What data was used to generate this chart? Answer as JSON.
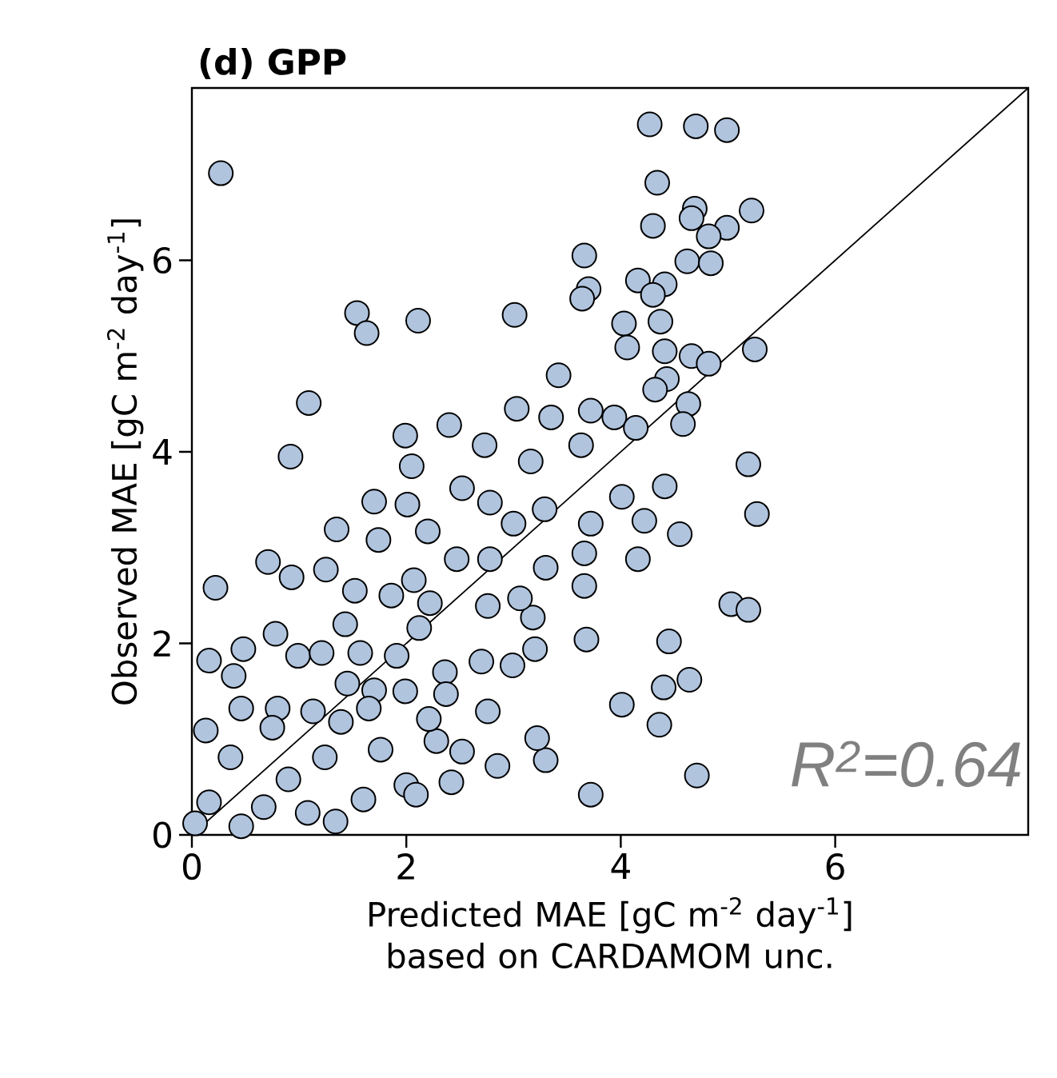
{
  "chart_data": {
    "type": "scatter",
    "title": "(d) GPP",
    "xlabel": "Predicted MAE [gC m$^{-2}$ day$^{-1}$] based on CARDAMOM unc.",
    "ylabel": "Observed MAE [gC m$^{-2}$ day$^{-1}$]",
    "annotations": [
      "*R$^{2}$=0.64*"
    ],
    "xlim": [
      0,
      7.8
    ],
    "ylim": [
      0,
      7.8
    ],
    "xticks": [
      0,
      2,
      4,
      6
    ],
    "yticks": [
      0,
      2,
      4,
      6
    ],
    "series": [
      {
        "marker": "circle",
        "color": "#b0c4de",
        "x": [
          4.27,
          4.7,
          4.99,
          0.27,
          4.34,
          4.69,
          4.66,
          5.22,
          4.3,
          4.99,
          4.82,
          3.66,
          3.7,
          3.64,
          4.62,
          4.84,
          4.16,
          4.41,
          4.3,
          1.54,
          1.63,
          2.11,
          3.01,
          4.03,
          4.06,
          4.37,
          4.41,
          4.66,
          4.82,
          5.25,
          3.42,
          4.43,
          4.32,
          4.63,
          4.58,
          1.09,
          0.92,
          1.99,
          2.05,
          2.4,
          2.73,
          3.03,
          3.35,
          3.16,
          3.72,
          3.94,
          4.14,
          3.63,
          5.19,
          5.27,
          4.41,
          4.01,
          4.22,
          4.55,
          3.72,
          3.66,
          4.16,
          3.66,
          5.03,
          5.19,
          3.68,
          4.45,
          4.64,
          4.4,
          4.01,
          4.36,
          4.71,
          3.72,
          3.3,
          3.22,
          2.85,
          2.76,
          2.42,
          2.52,
          2.28,
          3.2,
          2.99,
          2.7,
          3.18,
          3.3,
          2.76,
          3.06,
          2.78,
          2.47,
          3.0,
          2.78,
          2.52,
          3.29,
          2.2,
          2.01,
          1.7,
          1.35,
          1.74,
          0.71,
          0.93,
          1.25,
          0.22,
          2.07,
          1.86,
          2.22,
          1.52,
          1.43,
          2.12,
          2.36,
          1.91,
          1.57,
          0.78,
          0.48,
          0.16,
          0.99,
          1.21,
          0.39,
          1.45,
          1.99,
          1.7,
          2.37,
          1.13,
          0.8,
          0.46,
          0.13,
          0.75,
          1.39,
          1.76,
          1.24,
          2.0,
          2.09,
          0.9,
          0.36,
          0.46,
          1.34,
          1.6,
          0.16,
          0.67,
          1.08,
          0.03,
          1.65,
          2.21
        ],
        "values": [
          7.42,
          7.4,
          7.36,
          6.91,
          6.81,
          6.54,
          6.44,
          6.52,
          6.36,
          6.34,
          6.25,
          6.05,
          5.7,
          5.6,
          5.99,
          5.97,
          5.79,
          5.75,
          5.64,
          5.45,
          5.24,
          5.37,
          5.43,
          5.34,
          5.09,
          5.36,
          5.05,
          5.0,
          4.92,
          5.07,
          4.8,
          4.76,
          4.65,
          4.5,
          4.29,
          4.51,
          3.95,
          4.17,
          3.85,
          4.28,
          4.07,
          4.45,
          4.36,
          3.9,
          4.43,
          4.36,
          4.25,
          4.07,
          3.87,
          3.35,
          3.64,
          3.53,
          3.28,
          3.14,
          3.25,
          2.94,
          2.88,
          2.6,
          2.41,
          2.35,
          2.04,
          2.02,
          1.62,
          1.54,
          1.36,
          1.15,
          0.62,
          0.42,
          0.78,
          1.01,
          0.72,
          1.29,
          0.55,
          0.87,
          0.98,
          1.94,
          1.77,
          1.81,
          2.27,
          2.79,
          2.39,
          2.47,
          2.88,
          2.88,
          3.25,
          3.47,
          3.62,
          3.4,
          3.17,
          3.45,
          3.48,
          3.19,
          3.08,
          2.85,
          2.69,
          2.77,
          2.58,
          2.66,
          2.5,
          2.42,
          2.55,
          2.2,
          2.16,
          1.7,
          1.87,
          1.9,
          2.1,
          1.94,
          1.82,
          1.87,
          1.9,
          1.66,
          1.58,
          1.5,
          1.51,
          1.47,
          1.29,
          1.32,
          1.32,
          1.09,
          1.12,
          1.18,
          0.89,
          0.81,
          0.52,
          0.42,
          0.58,
          0.81,
          0.09,
          0.14,
          0.37,
          0.34,
          0.29,
          0.23,
          0.12,
          1.32,
          1.21
        ]
      },
      {
        "type": "line",
        "marker": "none",
        "color": "#000000",
        "x": [
          0,
          7.8
        ],
        "values": [
          0,
          7.8
        ]
      }
    ]
  }
}
